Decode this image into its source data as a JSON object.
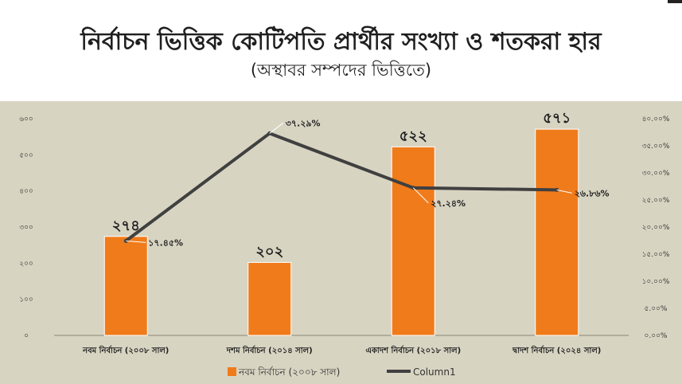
{
  "header": {
    "title": "নির্বাচন ভিত্তিক কোটিপতি প্রার্থীর সংখ্যা ও শতকরা হার",
    "subtitle": "(অস্থাবর সম্পদের ভিত্তিতে)"
  },
  "colors": {
    "bar": "#f07b1b",
    "bar_edge": "#ffffff",
    "line": "#404040",
    "background": "#d8d4c2"
  },
  "chart_data": {
    "type": "bar",
    "title": "নির্বাচন ভিত্তিক কোটিপতি প্রার্থীর সংখ্যা ও শতকরা হার",
    "subtitle": "(অস্থাবর সম্পদের ভিত্তিতে)",
    "categories": [
      "নবম নির্বাচন (২০০৮ সাল)",
      "দশম নির্বাচন (২০১৪ সাল)",
      "একাদশ নির্বাচন (২০১৮ সাল)",
      "দ্বাদশ নির্বাচন (২০২৪ সাল)"
    ],
    "series": [
      {
        "name": "নবম নির্বাচন (২০০৮ সাল)",
        "type": "bar",
        "axis": "left",
        "values": [
          274,
          202,
          522,
          571
        ],
        "labels": [
          "২৭৪",
          "২০২",
          "৫২২",
          "৫৭১"
        ]
      },
      {
        "name": "Column1",
        "type": "line",
        "axis": "right",
        "values": [
          17.45,
          37.29,
          27.24,
          26.86
        ],
        "labels": [
          "১৭.৪৫%",
          "৩৭.২৯%",
          "২৭.২৪%",
          "২৬.৮৬%"
        ]
      }
    ],
    "ylim_left": [
      0,
      600
    ],
    "left_ticks": [
      0,
      100,
      200,
      300,
      400,
      500,
      600
    ],
    "left_tick_labels": [
      "০",
      "১০০",
      "২০০",
      "৩০০",
      "৪০০",
      "৫০০",
      "৬০০"
    ],
    "ylim_right": [
      0,
      40
    ],
    "right_ticks": [
      0,
      5,
      10,
      15,
      20,
      25,
      30,
      35,
      40
    ],
    "right_tick_labels": [
      "০.০০%",
      "৫.০০%",
      "১০.০০%",
      "১৫.০০%",
      "২০.০০%",
      "২৫.০০%",
      "৩০.০০%",
      "৩৫.০০%",
      "৪০.০০%"
    ],
    "grid": false,
    "legend": "bottom"
  }
}
